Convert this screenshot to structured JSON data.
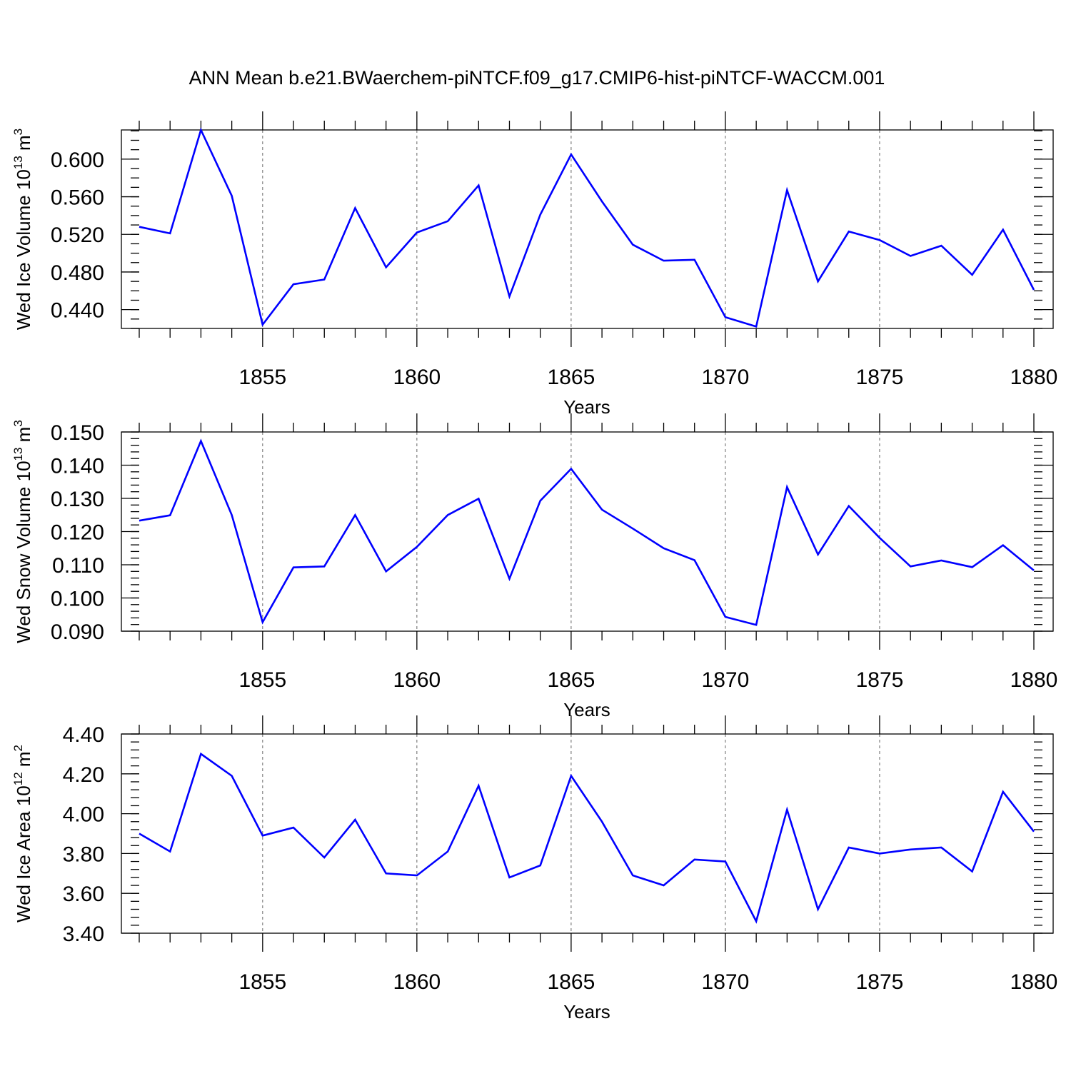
{
  "title": "ANN Mean b.e21.BWaerchem-piNTCF.f09_g17.CMIP6-hist-piNTCF-WACCM.001",
  "colors": {
    "line": "#0000ff",
    "axis": "#000000",
    "background": "#ffffff"
  },
  "chart_data": [
    {
      "type": "line",
      "xlabel": "Years",
      "ylabel": "Wed Ice Volume 10",
      "ylabel_exp": "13",
      "ylabel_unit": " m",
      "ylabel_unit_exp": "3",
      "xlim": [
        1851,
        1880
      ],
      "ylim": [
        0.42,
        0.631
      ],
      "yticks": [
        0.44,
        0.48,
        0.52,
        0.56,
        0.6
      ],
      "ytick_labels": [
        "0.440",
        "0.480",
        "0.520",
        "0.560",
        "0.600"
      ],
      "yminor_step": 0.01,
      "xticks": [
        1855,
        1860,
        1865,
        1870,
        1875,
        1880
      ],
      "xtick_labels": [
        "1855",
        "1860",
        "1865",
        "1870",
        "1875",
        "1880"
      ],
      "grid": "x dashed",
      "x": [
        1851,
        1852,
        1853,
        1854,
        1855,
        1856,
        1857,
        1858,
        1859,
        1860,
        1861,
        1862,
        1863,
        1864,
        1865,
        1866,
        1867,
        1868,
        1869,
        1870,
        1871,
        1872,
        1873,
        1874,
        1875,
        1876,
        1877,
        1878,
        1879,
        1880
      ],
      "values": [
        0.528,
        0.521,
        0.631,
        0.561,
        0.424,
        0.467,
        0.472,
        0.548,
        0.485,
        0.522,
        0.534,
        0.572,
        0.454,
        0.541,
        0.605,
        0.555,
        0.509,
        0.492,
        0.493,
        0.432,
        0.422,
        0.567,
        0.47,
        0.523,
        0.514,
        0.497,
        0.508,
        0.477,
        0.525,
        0.461
      ]
    },
    {
      "type": "line",
      "xlabel": "Years",
      "ylabel": "Wed Snow Volume 10",
      "ylabel_exp": "13",
      "ylabel_unit": " m",
      "ylabel_unit_exp": "3",
      "xlim": [
        1851,
        1880
      ],
      "ylim": [
        0.09,
        0.15
      ],
      "yticks": [
        0.09,
        0.1,
        0.11,
        0.12,
        0.13,
        0.14,
        0.15
      ],
      "ytick_labels": [
        "0.090",
        "0.100",
        "0.110",
        "0.120",
        "0.130",
        "0.140",
        "0.150"
      ],
      "yminor_step": 0.002,
      "xticks": [
        1855,
        1860,
        1865,
        1870,
        1875,
        1880
      ],
      "xtick_labels": [
        "1855",
        "1860",
        "1865",
        "1870",
        "1875",
        "1880"
      ],
      "grid": "x dashed",
      "x": [
        1851,
        1852,
        1853,
        1854,
        1855,
        1856,
        1857,
        1858,
        1859,
        1860,
        1861,
        1862,
        1863,
        1864,
        1865,
        1866,
        1867,
        1868,
        1869,
        1870,
        1871,
        1872,
        1873,
        1874,
        1875,
        1876,
        1877,
        1878,
        1879,
        1880
      ],
      "values": [
        0.1233,
        0.1249,
        0.1473,
        0.125,
        0.0927,
        0.1092,
        0.1095,
        0.125,
        0.108,
        0.1154,
        0.125,
        0.1299,
        0.1058,
        0.1293,
        0.1389,
        0.1266,
        0.1209,
        0.115,
        0.1114,
        0.0943,
        0.0919,
        0.1334,
        0.1131,
        0.1277,
        0.1181,
        0.1095,
        0.1113,
        0.1093,
        0.1159,
        0.1083
      ]
    },
    {
      "type": "line",
      "xlabel": "Years",
      "ylabel": "Wed Ice Area 10",
      "ylabel_exp": "12",
      "ylabel_unit": " m",
      "ylabel_unit_exp": "2",
      "xlim": [
        1851,
        1880
      ],
      "ylim": [
        3.4,
        4.4
      ],
      "yticks": [
        3.4,
        3.6,
        3.8,
        4.0,
        4.2,
        4.4
      ],
      "ytick_labels": [
        "3.40",
        "3.60",
        "3.80",
        "4.00",
        "4.20",
        "4.40"
      ],
      "yminor_step": 0.04,
      "xticks": [
        1855,
        1860,
        1865,
        1870,
        1875,
        1880
      ],
      "xtick_labels": [
        "1855",
        "1860",
        "1865",
        "1870",
        "1875",
        "1880"
      ],
      "grid": "x dashed",
      "x": [
        1851,
        1852,
        1853,
        1854,
        1855,
        1856,
        1857,
        1858,
        1859,
        1860,
        1861,
        1862,
        1863,
        1864,
        1865,
        1866,
        1867,
        1868,
        1869,
        1870,
        1871,
        1872,
        1873,
        1874,
        1875,
        1876,
        1877,
        1878,
        1879,
        1880
      ],
      "values": [
        3.9,
        3.81,
        4.3,
        4.19,
        3.89,
        3.93,
        3.78,
        3.97,
        3.7,
        3.69,
        3.81,
        4.14,
        3.68,
        3.74,
        4.19,
        3.96,
        3.69,
        3.64,
        3.77,
        3.76,
        3.46,
        4.02,
        3.52,
        3.83,
        3.8,
        3.82,
        3.83,
        3.71,
        4.11,
        3.91
      ]
    }
  ]
}
